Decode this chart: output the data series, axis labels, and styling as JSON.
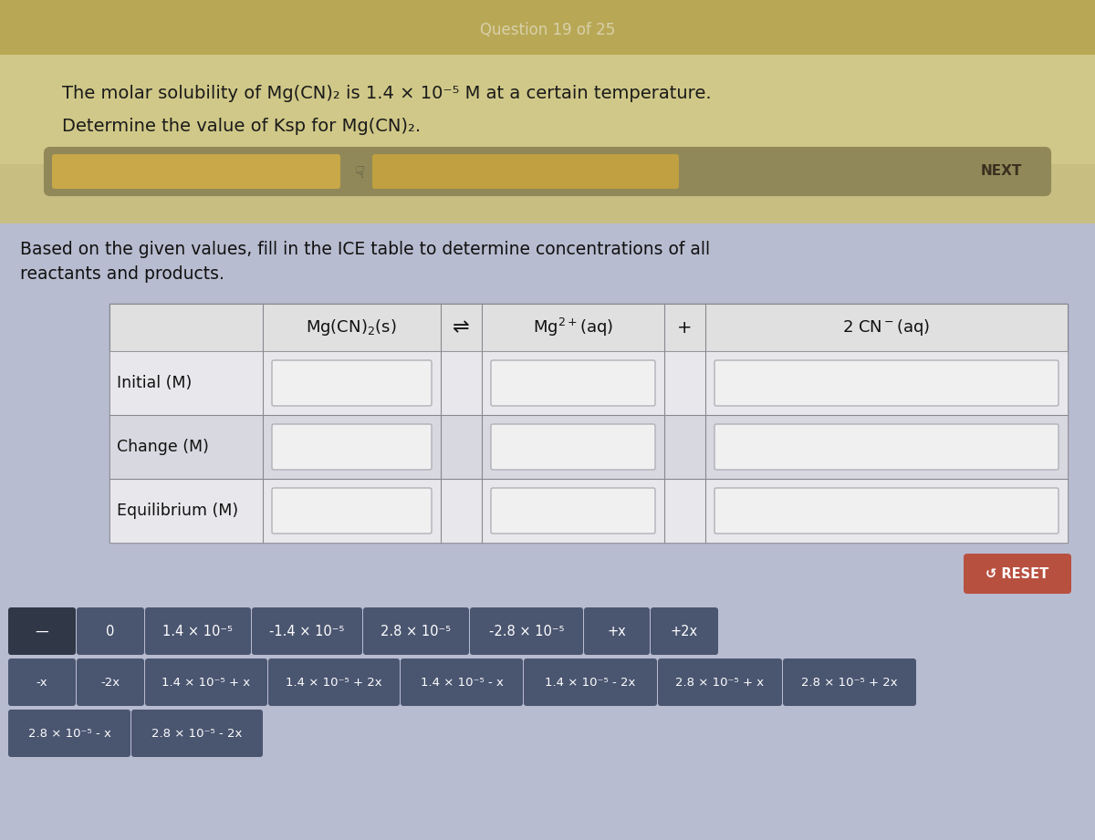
{
  "title_bar_color": "#b8a855",
  "title_text": "Question 19 of 25",
  "title_text_color": "#d8d0aa",
  "upper_bg_color": "#c8be80",
  "main_bg_color": "#b8bcd0",
  "question_line1": "The molar solubility of Mg(CN)₂ is 1.4 × 10⁻⁵ M at a certain temperature.",
  "question_line2": "Determine the value of Ksp for Mg(CN)₂.",
  "instruction_line1": "Based on the given values, fill in the ICE table to determine concentrations of all",
  "instruction_line2": "reactants and products.",
  "row_labels": [
    "Initial (M)",
    "Change (M)",
    "Equilibrium (M)"
  ],
  "next_btn_text": "NEXT",
  "reset_btn_color": "#b85040",
  "reset_btn_text": "↺ RESET",
  "token_bg": "#4a5570",
  "token_text_color": "#ffffff",
  "token_dark_bg": "#303848",
  "tokens_row1": [
    "—",
    "0",
    "1.4 × 10⁻⁵",
    "-1.4 × 10⁻⁵",
    "2.8 × 10⁻⁵",
    "-2.8 × 10⁻⁵",
    "+x",
    "+2x"
  ],
  "tokens_row2": [
    "-x",
    "-2x",
    "1.4 × 10⁻⁵ + x",
    "1.4 × 10⁻⁵ + 2x",
    "1.4 × 10⁻⁵ - x",
    "1.4 × 10⁻⁵ - 2x",
    "2.8 × 10⁻⁵ + x",
    "2.8 × 10⁻⁵ + 2x"
  ],
  "tokens_row3": [
    "2.8 × 10⁻⁵ - x",
    "2.8 × 10⁻⁵ - 2x"
  ],
  "table_outer_bg": "#d0d0d8",
  "table_header_bg": "#e0e0e0",
  "row_bg_light": "#e8e8ec",
  "row_bg_dark": "#d8d8e0",
  "cell_bg": "#f0f0f0",
  "cell_border": "#b0b0b8",
  "progress_outer": "#908858",
  "progress_seg1": "#c8a848",
  "progress_mid": "#808060",
  "progress_seg2": "#c0a040",
  "progress_dark": "#706840"
}
